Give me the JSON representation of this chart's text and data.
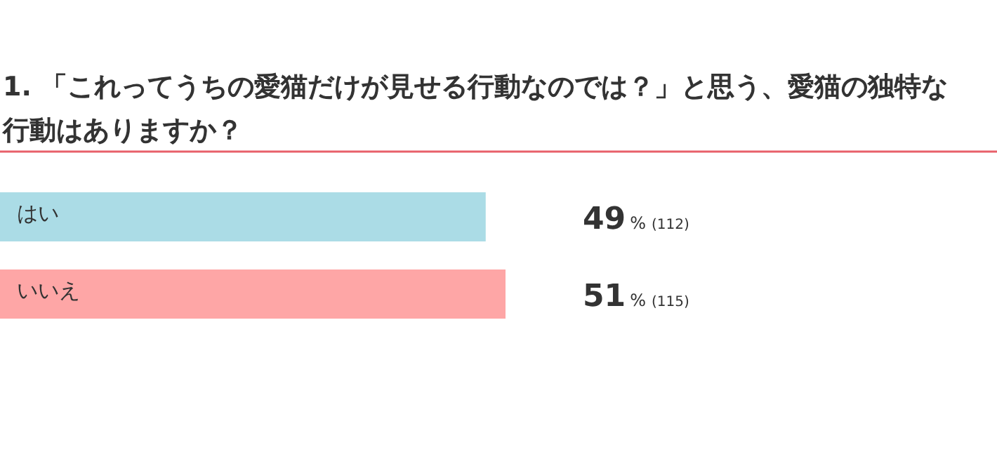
{
  "chart_data": {
    "type": "bar",
    "orientation": "horizontal",
    "title": "1. 「これってうちの愛猫だけが見せる行動なのでは？」と思う、愛猫の独特な行動はありますか？",
    "categories": [
      "はい",
      "いいえ"
    ],
    "values": [
      49,
      51
    ],
    "colors": [
      "#abdce6",
      "#fea6a6"
    ],
    "value_labels": [
      "49% (112)",
      "51% (115)"
    ]
  }
}
